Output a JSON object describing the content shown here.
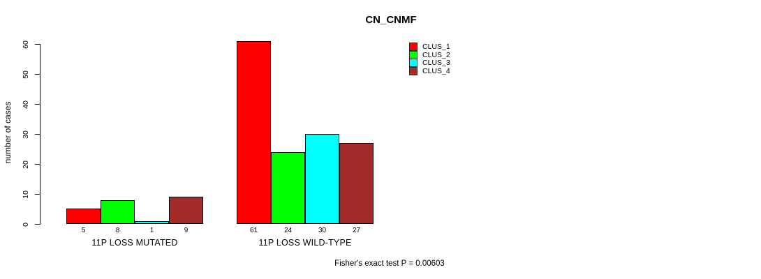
{
  "chart_data": {
    "type": "bar",
    "title": "CN_CNMF",
    "ylabel": "number of cases",
    "xlabel": "",
    "footnote": "Fisher's exact test P = 0.00603",
    "categories": [
      "11P LOSS MUTATED",
      "11P LOSS WILD-TYPE"
    ],
    "series": [
      {
        "name": "CLUS_1",
        "color": "#ff0000",
        "values": [
          5,
          61
        ]
      },
      {
        "name": "CLUS_2",
        "color": "#00ff00",
        "values": [
          8,
          24
        ]
      },
      {
        "name": "CLUS_3",
        "color": "#00ffff",
        "values": [
          1,
          30
        ]
      },
      {
        "name": "CLUS_4",
        "color": "#a52a2a",
        "values": [
          9,
          27
        ]
      }
    ],
    "ylim": [
      0,
      60
    ],
    "yticks": [
      0,
      10,
      20,
      30,
      40,
      50,
      60
    ],
    "grid": false,
    "legend_position": "top-right",
    "bar_border_color": "#000000",
    "value_labels_shown": true
  }
}
